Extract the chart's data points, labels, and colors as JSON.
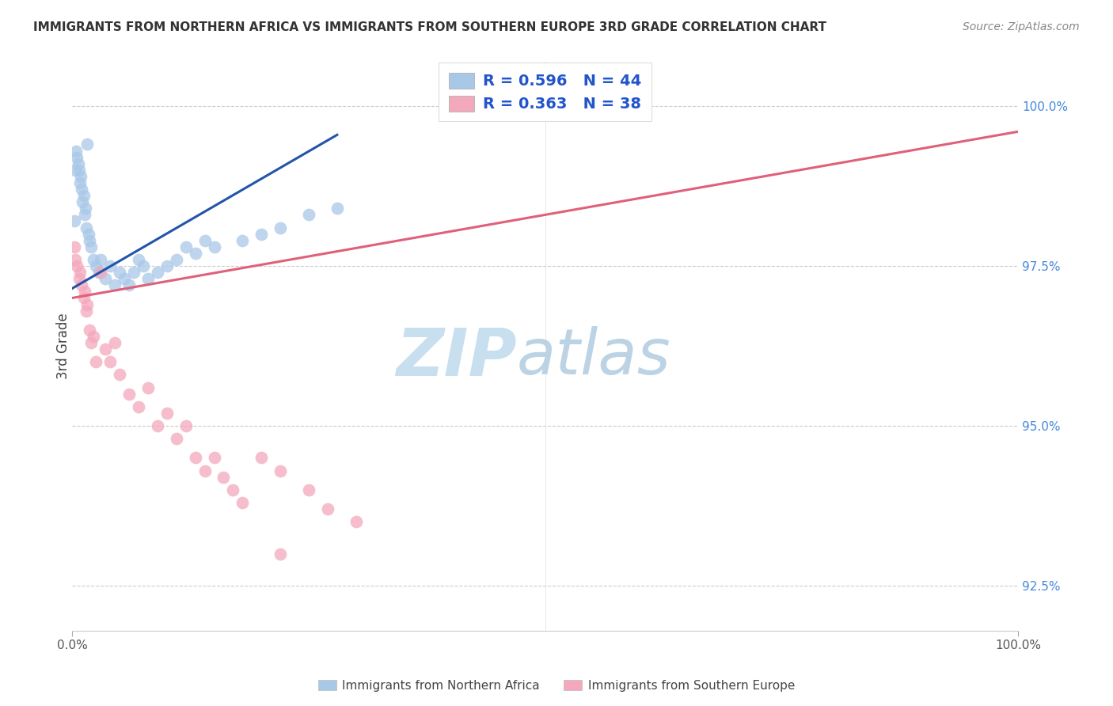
{
  "title": "IMMIGRANTS FROM NORTHERN AFRICA VS IMMIGRANTS FROM SOUTHERN EUROPE 3RD GRADE CORRELATION CHART",
  "source": "Source: ZipAtlas.com",
  "ylabel": "3rd Grade",
  "right_yticks": [
    92.5,
    95.0,
    97.5,
    100.0
  ],
  "right_ytick_labels": [
    "92.5%",
    "95.0%",
    "97.5%",
    "100.0%"
  ],
  "legend1_label": "Immigrants from Northern Africa",
  "legend2_label": "Immigrants from Southern Europe",
  "r_blue": 0.596,
  "n_blue": 44,
  "r_pink": 0.363,
  "n_pink": 38,
  "blue_color": "#a8c8e8",
  "pink_color": "#f4a8bc",
  "blue_line_color": "#2255aa",
  "pink_line_color": "#e0607a",
  "watermark_zip_color": "#c8dff0",
  "watermark_atlas_color": "#b0cce0",
  "blue_dots_x": [
    0.2,
    0.3,
    0.4,
    0.5,
    0.6,
    0.7,
    0.8,
    0.9,
    1.0,
    1.1,
    1.2,
    1.3,
    1.4,
    1.5,
    1.6,
    1.7,
    1.8,
    2.0,
    2.2,
    2.5,
    2.8,
    3.0,
    3.5,
    4.0,
    4.5,
    5.0,
    5.5,
    6.0,
    6.5,
    7.0,
    7.5,
    8.0,
    9.0,
    10.0,
    11.0,
    12.0,
    13.0,
    14.0,
    15.0,
    18.0,
    20.0,
    22.0,
    25.0,
    28.0
  ],
  "blue_dots_y": [
    98.2,
    99.0,
    99.3,
    99.2,
    99.1,
    99.0,
    98.8,
    98.9,
    98.7,
    98.5,
    98.6,
    98.3,
    98.4,
    98.1,
    99.4,
    98.0,
    97.9,
    97.8,
    97.6,
    97.5,
    97.4,
    97.6,
    97.3,
    97.5,
    97.2,
    97.4,
    97.3,
    97.2,
    97.4,
    97.6,
    97.5,
    97.3,
    97.4,
    97.5,
    97.6,
    97.8,
    97.7,
    97.9,
    97.8,
    97.9,
    98.0,
    98.1,
    98.3,
    98.4
  ],
  "pink_dots_x": [
    0.2,
    0.3,
    0.5,
    0.7,
    0.8,
    1.0,
    1.2,
    1.3,
    1.5,
    1.6,
    1.8,
    2.0,
    2.2,
    2.5,
    3.0,
    3.5,
    4.0,
    4.5,
    5.0,
    6.0,
    7.0,
    8.0,
    9.0,
    10.0,
    11.0,
    12.0,
    13.0,
    14.0,
    15.0,
    16.0,
    17.0,
    18.0,
    20.0,
    22.0,
    25.0,
    27.0,
    30.0,
    22.0
  ],
  "pink_dots_y": [
    97.8,
    97.6,
    97.5,
    97.3,
    97.4,
    97.2,
    97.0,
    97.1,
    96.8,
    96.9,
    96.5,
    96.3,
    96.4,
    96.0,
    97.4,
    96.2,
    96.0,
    96.3,
    95.8,
    95.5,
    95.3,
    95.6,
    95.0,
    95.2,
    94.8,
    95.0,
    94.5,
    94.3,
    94.5,
    94.2,
    94.0,
    93.8,
    94.5,
    94.3,
    94.0,
    93.7,
    93.5,
    93.0
  ]
}
